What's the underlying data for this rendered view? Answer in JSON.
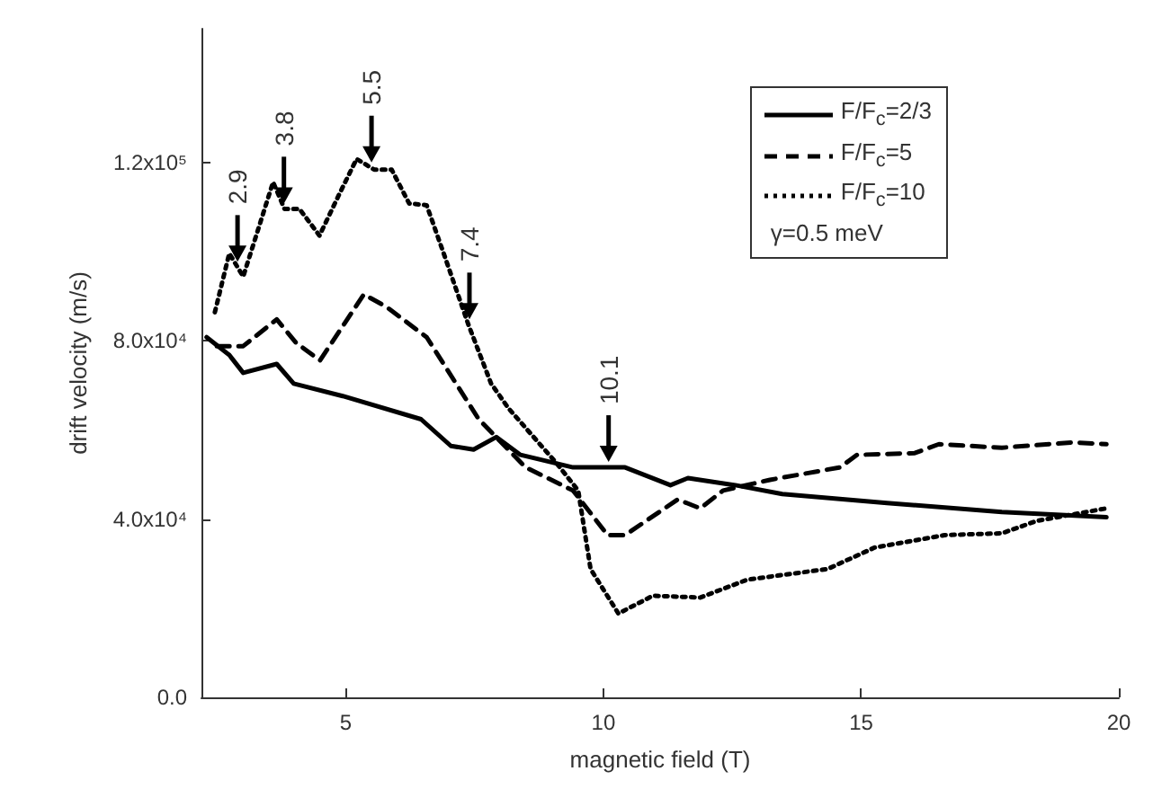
{
  "chart_data": {
    "type": "line",
    "xlabel": "magnetic field (T)",
    "ylabel": "drift velocity (m/s)",
    "xlim": [
      2.2,
      20
    ],
    "xticks": [
      5,
      10,
      15,
      20
    ],
    "ylim": [
      0,
      150000
    ],
    "yticks": [
      {
        "value": 0,
        "label": "0.0"
      },
      {
        "value": 40000,
        "label": "4.0x10⁴"
      },
      {
        "value": 80000,
        "label": "8.0x10⁴"
      },
      {
        "value": 120000,
        "label": "1.2x10⁵"
      }
    ],
    "grid": false,
    "legend": "top right",
    "marker": "none",
    "series": [
      {
        "name": "F/F$_{c}$=2/3",
        "color": "#000000",
        "line_style": "solid",
        "x": [
          2.3,
          2.74,
          3.01,
          3.66,
          3.99,
          4.94,
          6.46,
          7.04,
          7.48,
          7.92,
          8.39,
          9.41,
          10.42,
          11.3,
          11.64,
          12.56,
          13.47,
          15.5,
          17.73,
          19.76
        ],
        "values": [
          80800,
          76800,
          72800,
          74800,
          70400,
          67600,
          62400,
          56400,
          55600,
          58400,
          54400,
          51600,
          51600,
          47600,
          49200,
          47600,
          45600,
          43600,
          41600,
          40400
        ]
      },
      {
        "name": "F/F$_{c}$=5",
        "color": "#000000",
        "line_style": "dashed",
        "x": [
          2.5,
          3.01,
          3.66,
          4.03,
          4.5,
          5.35,
          5.79,
          6.57,
          7.14,
          7.58,
          8.49,
          9.41,
          10.08,
          10.42,
          11.44,
          11.88,
          12.32,
          13.23,
          14.59,
          14.92,
          16.04,
          16.51,
          17.73,
          19.09,
          19.76
        ],
        "values": [
          78800,
          78800,
          84800,
          79600,
          75600,
          90400,
          87600,
          80800,
          70400,
          62400,
          51600,
          46400,
          36400,
          36400,
          44400,
          42400,
          46400,
          48800,
          51600,
          54400,
          54800,
          56800,
          56000,
          57200,
          56800
        ]
      },
      {
        "name": "F/F$_{c}$=10",
        "color": "#000000",
        "line_style": "dotted",
        "x": [
          2.46,
          2.74,
          3.01,
          3.59,
          3.81,
          4.1,
          4.49,
          4.87,
          5.21,
          5.55,
          5.89,
          6.23,
          6.57,
          6.9,
          7.38,
          7.82,
          8.16,
          9.07,
          9.51,
          9.75,
          10.29,
          10.96,
          11.88,
          12.79,
          14.35,
          15.26,
          16.62,
          17.73,
          18.41,
          19.76
        ],
        "values": [
          86400,
          99600,
          94400,
          115600,
          109600,
          109600,
          103600,
          112800,
          120800,
          118400,
          118400,
          110800,
          110400,
          99600,
          83600,
          70400,
          64800,
          52800,
          46400,
          28800,
          18800,
          22800,
          22400,
          26400,
          28800,
          33600,
          36400,
          36800,
          39600,
          42400
        ]
      }
    ],
    "annotations": [
      "γ=0.5 meV",
      {
        "text": "2.9",
        "x": 2.9,
        "y": 96500
      },
      {
        "text": "3.8",
        "x": 3.8,
        "y": 109600
      },
      {
        "text": "5.5",
        "x": 5.5,
        "y": 118800
      },
      {
        "text": "7.4",
        "x": 7.4,
        "y": 83600
      },
      {
        "text": "10.1",
        "x": 10.1,
        "y": 51600
      }
    ]
  }
}
